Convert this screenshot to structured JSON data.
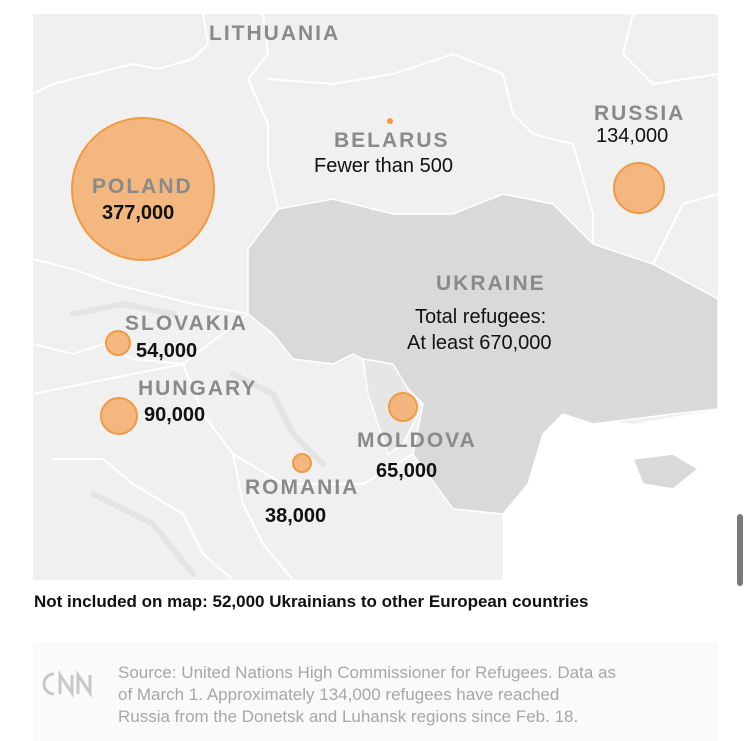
{
  "map": {
    "countries": {
      "lithuania": {
        "name": "LITHUANIA"
      },
      "belarus": {
        "name": "BELARUS",
        "value": "Fewer than 500"
      },
      "russia": {
        "name": "RUSSIA",
        "value": "134,000"
      },
      "poland": {
        "name": "POLAND",
        "value": "377,000"
      },
      "ukraine": {
        "name": "UKRAINE",
        "value_line1": "Total refugees:",
        "value_line2": "At least 670,000"
      },
      "slovakia": {
        "name": "SLOVAKIA",
        "value": "54,000"
      },
      "hungary": {
        "name": "HUNGARY",
        "value": "90,000"
      },
      "moldova": {
        "name": "MOLDOVA",
        "value": "65,000"
      },
      "romania": {
        "name": "ROMANIA",
        "value": "38,000"
      }
    },
    "bubble_color": "#f3a75f",
    "bubble_border_color": "#ef9a45",
    "ukraine_fill": "#d9d9d9"
  },
  "note": "Not included on map: 52,000 Ukrainians to other European countries",
  "footer": {
    "logo": "CNN",
    "source_line1": "Source: United Nations High Commissioner for Refugees. Data as",
    "source_line2": "of March 1. Approximately 134,000 refugees have reached",
    "source_line3": "Russia from the Donetsk and Luhansk regions since Feb. 18."
  }
}
